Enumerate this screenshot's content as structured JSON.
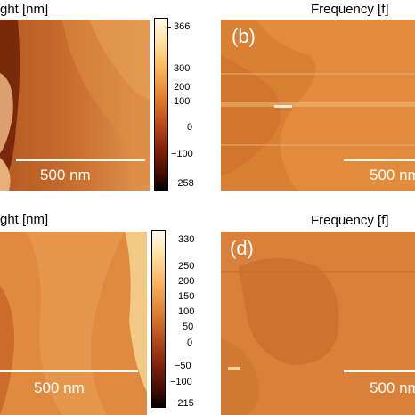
{
  "titles": {
    "a": "ght [nm]",
    "b": "Frequency [f]",
    "c": "ght [nm]",
    "d": "Frequency [f]"
  },
  "panels": {
    "a": {
      "scale_text": "500 nm"
    },
    "b": {
      "label": "(b)",
      "scale_text": "500 nm"
    },
    "c": {
      "scale_text": "500 nm"
    },
    "d": {
      "label": "(d)",
      "scale_text": "500 nm"
    }
  },
  "colorbar_top": {
    "ticks": [
      "366",
      "300",
      "200",
      "100",
      "0",
      "−100",
      "−258"
    ]
  },
  "colorbar_bottom": {
    "ticks": [
      "330",
      "250",
      "200",
      "150",
      "100",
      "50",
      "0",
      "−50",
      "−100",
      "−215"
    ]
  },
  "colors": {
    "afm_dark": "#7a2a0a",
    "afm_mid": "#c0652a",
    "afm_light": "#f2b56a",
    "scale": "#ffffff"
  }
}
